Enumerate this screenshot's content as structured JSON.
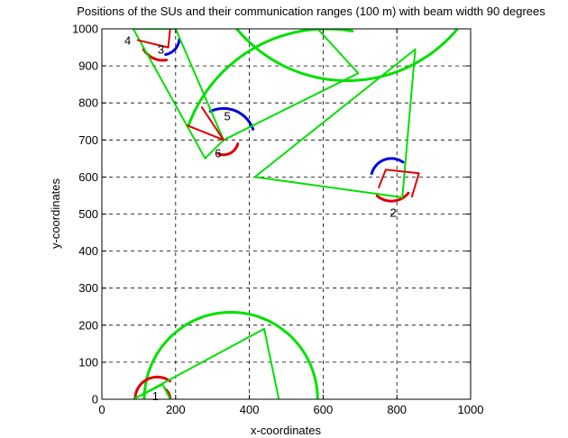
{
  "chart_data": {
    "type": "scatter",
    "title": "Positions of the SUs and their communication ranges (100 m) with beam width 90 degrees",
    "xlabel": "x-coordinates",
    "ylabel": "y-coordinates",
    "xlim": [
      0,
      1000
    ],
    "ylim": [
      0,
      1000
    ],
    "xticks": [
      0,
      200,
      400,
      600,
      800,
      1000
    ],
    "yticks": [
      0,
      100,
      200,
      300,
      400,
      500,
      600,
      700,
      800,
      900,
      1000
    ],
    "grid": true,
    "colors": {
      "green": "#00e000",
      "red": "#e00000",
      "blue": "#0000e0"
    },
    "annotations": [
      {
        "text": "4",
        "x": 70,
        "y": 970
      },
      {
        "text": "3",
        "x": 160,
        "y": 945
      },
      {
        "text": "5",
        "x": 340,
        "y": 765
      },
      {
        "text": "6",
        "x": 315,
        "y": 665
      },
      {
        "text": "2",
        "x": 790,
        "y": 505
      },
      {
        "text": "1",
        "x": 145,
        "y": 10
      }
    ],
    "polylines": [
      {
        "color": "green",
        "width": 2,
        "points": [
          [
            85,
            1000
          ],
          [
            200,
            1000
          ],
          [
            330,
            700
          ],
          [
            280,
            650
          ],
          [
            85,
            1000
          ]
        ]
      },
      {
        "color": "green",
        "width": 2,
        "points": [
          [
            330,
            700
          ],
          [
            695,
            880
          ],
          [
            585,
            1000
          ]
        ]
      },
      {
        "color": "green",
        "width": 2,
        "points": [
          [
            415,
            600
          ],
          [
            850,
            945
          ],
          [
            815,
            545
          ],
          [
            415,
            600
          ]
        ]
      },
      {
        "color": "green",
        "width": 2,
        "points": [
          [
            85,
            0
          ],
          [
            440,
            190
          ],
          [
            480,
            0
          ]
        ]
      },
      {
        "color": "green",
        "width": 2,
        "points": [
          [
            85,
            0
          ],
          [
            165,
            40
          ],
          [
            185,
            0
          ]
        ]
      },
      {
        "color": "red",
        "width": 2,
        "points": [
          [
            230,
            740
          ],
          [
            330,
            700
          ],
          [
            270,
            790
          ]
        ]
      },
      {
        "color": "red",
        "width": 2,
        "points": [
          [
            750,
            570
          ],
          [
            770,
            620
          ],
          [
            860,
            610
          ],
          [
            840,
            545
          ]
        ]
      },
      {
        "color": "red",
        "width": 2,
        "points": [
          [
            95,
            970
          ],
          [
            180,
            950
          ],
          [
            185,
            1000
          ]
        ]
      }
    ],
    "arcs": [
      {
        "color": "green",
        "width": 3,
        "cx": 610,
        "cy": 600,
        "r": 400,
        "a0": 80,
        "a1": 160
      },
      {
        "color": "green",
        "width": 3,
        "cx": 665,
        "cy": 1250,
        "r": 390,
        "a0": 215,
        "a1": 320
      },
      {
        "color": "green",
        "width": 3,
        "cx": 85,
        "cy": 2000,
        "r": 1100,
        "a0": 300,
        "a1": 385
      },
      {
        "color": "green",
        "width": 3,
        "cx": 350,
        "cy": 0,
        "r": 235,
        "a0": 0,
        "a1": 180
      },
      {
        "color": "green",
        "width": 3,
        "cx": 480,
        "cy": 920,
        "r": 960,
        "a0": 80,
        "a1": 150
      },
      {
        "color": "red",
        "width": 3,
        "cx": 330,
        "cy": 700,
        "r": 40,
        "a0": 250,
        "a1": 345
      },
      {
        "color": "blue",
        "width": 3,
        "cx": 330,
        "cy": 700,
        "r": 85,
        "a0": 20,
        "a1": 115
      },
      {
        "color": "red",
        "width": 3,
        "cx": 785,
        "cy": 595,
        "r": 60,
        "a0": 230,
        "a1": 320
      },
      {
        "color": "blue",
        "width": 3,
        "cx": 785,
        "cy": 595,
        "r": 55,
        "a0": 55,
        "a1": 165
      },
      {
        "color": "red",
        "width": 3,
        "cx": 165,
        "cy": 975,
        "r": 60,
        "a0": 210,
        "a1": 280
      },
      {
        "color": "blue",
        "width": 3,
        "cx": 165,
        "cy": 975,
        "r": 45,
        "a0": 280,
        "a1": 355
      },
      {
        "color": "red",
        "width": 3,
        "cx": 150,
        "cy": 0,
        "r": 60,
        "a0": 55,
        "a1": 180
      },
      {
        "color": "red",
        "width": 3,
        "cx": 150,
        "cy": 0,
        "r": 35,
        "a0": 0,
        "a1": 50
      }
    ]
  }
}
